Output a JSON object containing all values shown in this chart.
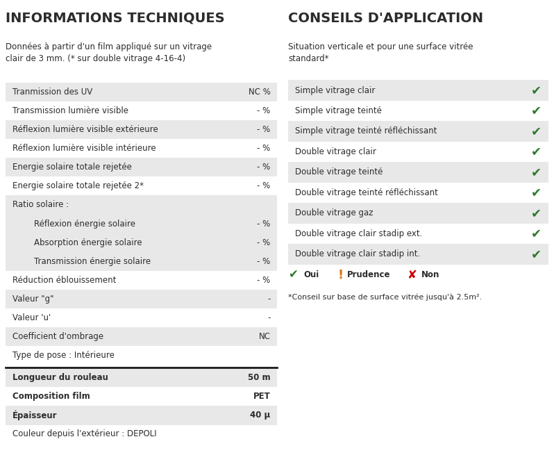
{
  "left_title": "INFORMATIONS TECHNIQUES",
  "left_subtitle": "Données à partir d'un film appliqué sur un vitrage\nclair de 3 mm. (* sur double vitrage 4-16-4)",
  "right_title": "CONSEILS D'APPLICATION",
  "right_subtitle": "Situation verticale et pour une surface vitrée\nstandard*",
  "left_rows": [
    {
      "label": "Tranmission des UV",
      "value": "NC %",
      "indent": false,
      "bg": "#e8e8e8"
    },
    {
      "label": "Transmission lumière visible",
      "value": "- %",
      "indent": false,
      "bg": "#ffffff"
    },
    {
      "label": "Réflexion lumière visible extérieure",
      "value": "- %",
      "indent": false,
      "bg": "#e8e8e8"
    },
    {
      "label": "Réflexion lumière visible intérieure",
      "value": "- %",
      "indent": false,
      "bg": "#ffffff"
    },
    {
      "label": "Energie solaire totale rejetée",
      "value": "- %",
      "indent": false,
      "bg": "#e8e8e8"
    },
    {
      "label": "Energie solaire totale rejetée 2*",
      "value": "- %",
      "indent": false,
      "bg": "#ffffff"
    },
    {
      "label": "Ratio solaire :",
      "value": "",
      "indent": false,
      "bg": "#e8e8e8"
    },
    {
      "label": "Réflexion énergie solaire",
      "value": "- %",
      "indent": true,
      "bg": "#e8e8e8"
    },
    {
      "label": "Absorption énergie solaire",
      "value": "- %",
      "indent": true,
      "bg": "#e8e8e8"
    },
    {
      "label": "Transmission énergie solaire",
      "value": "- %",
      "indent": true,
      "bg": "#e8e8e8"
    },
    {
      "label": "Réduction éblouissement",
      "value": "- %",
      "indent": false,
      "bg": "#ffffff"
    },
    {
      "label": "Valeur \"g\"",
      "value": "-",
      "indent": false,
      "bg": "#e8e8e8"
    },
    {
      "label": "Valeur 'u'",
      "value": "-",
      "indent": false,
      "bg": "#ffffff"
    },
    {
      "label": "Coefficient d'ombrage",
      "value": "NC",
      "indent": false,
      "bg": "#e8e8e8"
    },
    {
      "label": "Type de pose : Intérieure",
      "value": "",
      "indent": false,
      "bg": "#ffffff"
    }
  ],
  "left_rows_bold": [
    {
      "label": "Longueur du rouleau",
      "value": "50 m",
      "indent": false,
      "bg": "#e8e8e8"
    },
    {
      "label": "Composition film",
      "value": "PET",
      "indent": false,
      "bg": "#ffffff"
    },
    {
      "label": "Épaisseur",
      "value": "40 μ",
      "indent": false,
      "bg": "#e8e8e8"
    }
  ],
  "left_footer": "Couleur depuis l'extérieur : DEPOLI",
  "right_rows": [
    {
      "label": "Simple vitrage clair",
      "check": "oui",
      "bg": "#e8e8e8"
    },
    {
      "label": "Simple vitrage teinté",
      "check": "oui",
      "bg": "#ffffff"
    },
    {
      "label": "Simple vitrage teinté réfléchissant",
      "check": "oui",
      "bg": "#e8e8e8"
    },
    {
      "label": "Double vitrage clair",
      "check": "oui",
      "bg": "#ffffff"
    },
    {
      "label": "Double vitrage teinté",
      "check": "oui",
      "bg": "#e8e8e8"
    },
    {
      "label": "Double vitrage teinté réfléchissant",
      "check": "oui",
      "bg": "#ffffff"
    },
    {
      "label": "Double vitrage gaz",
      "check": "oui",
      "bg": "#e8e8e8"
    },
    {
      "label": "Double vitrage clair stadip ext.",
      "check": "oui",
      "bg": "#ffffff"
    },
    {
      "label": "Double vitrage clair stadip int.",
      "check": "oui",
      "bg": "#e8e8e8"
    }
  ],
  "legend_oui": "Oui",
  "legend_prudence": "Prudence",
  "legend_non": "Non",
  "legend_note": "*Conseil sur base de surface vitrée jusqu'à 2.5m².",
  "bg_color": "#ffffff",
  "text_color": "#2c2c2c",
  "green_check": "#2d7a2d",
  "orange_warn": "#e07000",
  "red_cross": "#cc0000"
}
